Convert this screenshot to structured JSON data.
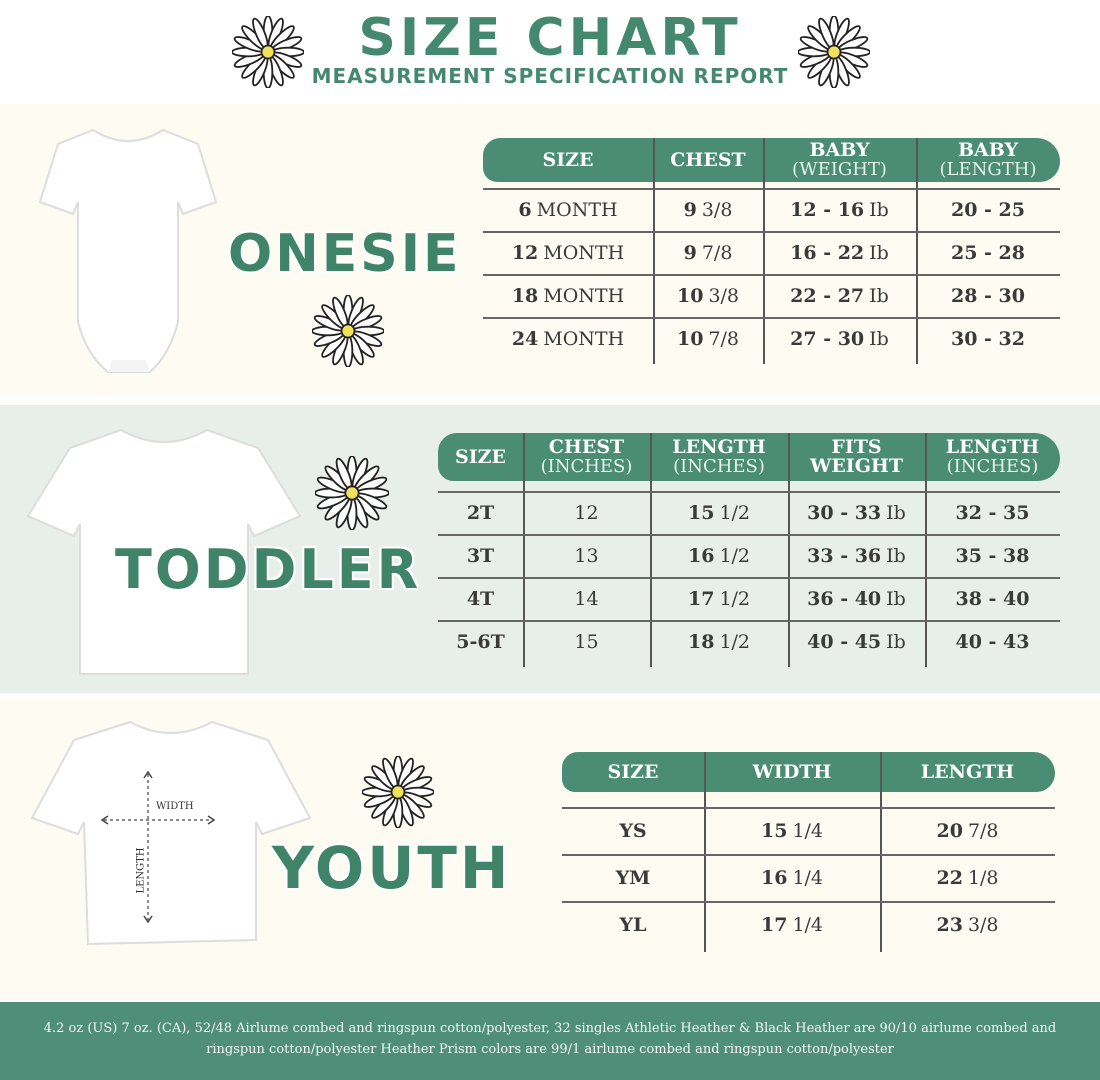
{
  "header": {
    "title": "SIZE CHART",
    "subtitle": "MEASUREMENT SPECIFICATION REPORT"
  },
  "colors": {
    "accent": "#4a8d74",
    "title": "#44896f",
    "onesie_bg": "#fdfbf2",
    "toddler_bg": "#e8efea",
    "footer_bg": "#4f8f7a"
  },
  "onesie": {
    "label": "ONESIE",
    "headers": [
      {
        "m": "SIZE",
        "s": ""
      },
      {
        "m": "CHEST",
        "s": ""
      },
      {
        "m": "BABY",
        "s": "(WEIGHT)"
      },
      {
        "m": "BABY",
        "s": "(LENGTH)"
      }
    ],
    "rows": [
      [
        {
          "b": "6",
          "r": "MONTH"
        },
        {
          "b": "9",
          "r": "3/8"
        },
        {
          "b": "12 - 16",
          "r": "Ib"
        },
        {
          "b": "20 - 25",
          "r": ""
        }
      ],
      [
        {
          "b": "12",
          "r": "MONTH"
        },
        {
          "b": "9",
          "r": "7/8"
        },
        {
          "b": "16 - 22",
          "r": "Ib"
        },
        {
          "b": "25 - 28",
          "r": ""
        }
      ],
      [
        {
          "b": "18",
          "r": " MONTH"
        },
        {
          "b": "10",
          "r": "3/8"
        },
        {
          "b": "22 - 27",
          "r": "Ib"
        },
        {
          "b": "28 - 30",
          "r": ""
        }
      ],
      [
        {
          "b": "24",
          "r": "MONTH"
        },
        {
          "b": "10",
          "r": "7/8"
        },
        {
          "b": "27 - 30",
          "r": "Ib"
        },
        {
          "b": "30 - 32",
          "r": ""
        }
      ]
    ]
  },
  "toddler": {
    "label": "TODDLER",
    "headers": [
      {
        "m": "SIZE",
        "s": ""
      },
      {
        "m": "CHEST",
        "s": "(INCHES)"
      },
      {
        "m": "LENGTH",
        "s": "(INCHES)"
      },
      {
        "m": "FITS",
        "s": "WEIGHT"
      },
      {
        "m": "LENGTH",
        "s": "(INCHES)"
      }
    ],
    "rows": [
      [
        {
          "b": "2T",
          "r": ""
        },
        {
          "b": "",
          "r": "12"
        },
        {
          "b": "15",
          "r": "1/2"
        },
        {
          "b": "30 - 33",
          "r": "Ib"
        },
        {
          "b": "32 - 35",
          "r": ""
        }
      ],
      [
        {
          "b": "3T",
          "r": ""
        },
        {
          "b": "",
          "r": "13"
        },
        {
          "b": "16",
          "r": "1/2"
        },
        {
          "b": "33 - 36",
          "r": "Ib"
        },
        {
          "b": "35 - 38",
          "r": ""
        }
      ],
      [
        {
          "b": "4T",
          "r": ""
        },
        {
          "b": "",
          "r": "14"
        },
        {
          "b": "17",
          "r": "1/2"
        },
        {
          "b": "36 - 40",
          "r": "Ib"
        },
        {
          "b": "38 - 40",
          "r": ""
        }
      ],
      [
        {
          "b": "5-6T",
          "r": ""
        },
        {
          "b": "",
          "r": "15"
        },
        {
          "b": "18",
          "r": "1/2"
        },
        {
          "b": "40 - 45",
          "r": "Ib"
        },
        {
          "b": "40 - 43",
          "r": ""
        }
      ]
    ]
  },
  "youth": {
    "label": "YOUTH",
    "width_label": "WIDTH",
    "length_label": "LENGTH",
    "headers": [
      {
        "m": "SIZE",
        "s": ""
      },
      {
        "m": "WIDTH",
        "s": ""
      },
      {
        "m": "LENGTH",
        "s": ""
      }
    ],
    "rows": [
      [
        {
          "b": "YS",
          "r": ""
        },
        {
          "b": "15",
          "r": "1/4"
        },
        {
          "b": "20",
          "r": "7/8"
        }
      ],
      [
        {
          "b": "YM",
          "r": ""
        },
        {
          "b": "16",
          "r": "1/4"
        },
        {
          "b": "22",
          "r": "1/8"
        }
      ],
      [
        {
          "b": "YL",
          "r": ""
        },
        {
          "b": "17",
          "r": "1/4"
        },
        {
          "b": "23",
          "r": "3/8"
        }
      ]
    ]
  },
  "footer": {
    "text": "4.2 oz (US) 7 oz. (CA), 52/48 Airlume combed and ringspun cotton/polyester, 32 singles Athletic Heather & Black Heather are 90/10 airlume combed and ringspun cotton/polyester Heather Prism colors are 99/1 airlume combed and ringspun cotton/polyester"
  },
  "icons": [
    "daisy-icon",
    "onesie-image",
    "tshirt-image",
    "arrow-icon"
  ]
}
